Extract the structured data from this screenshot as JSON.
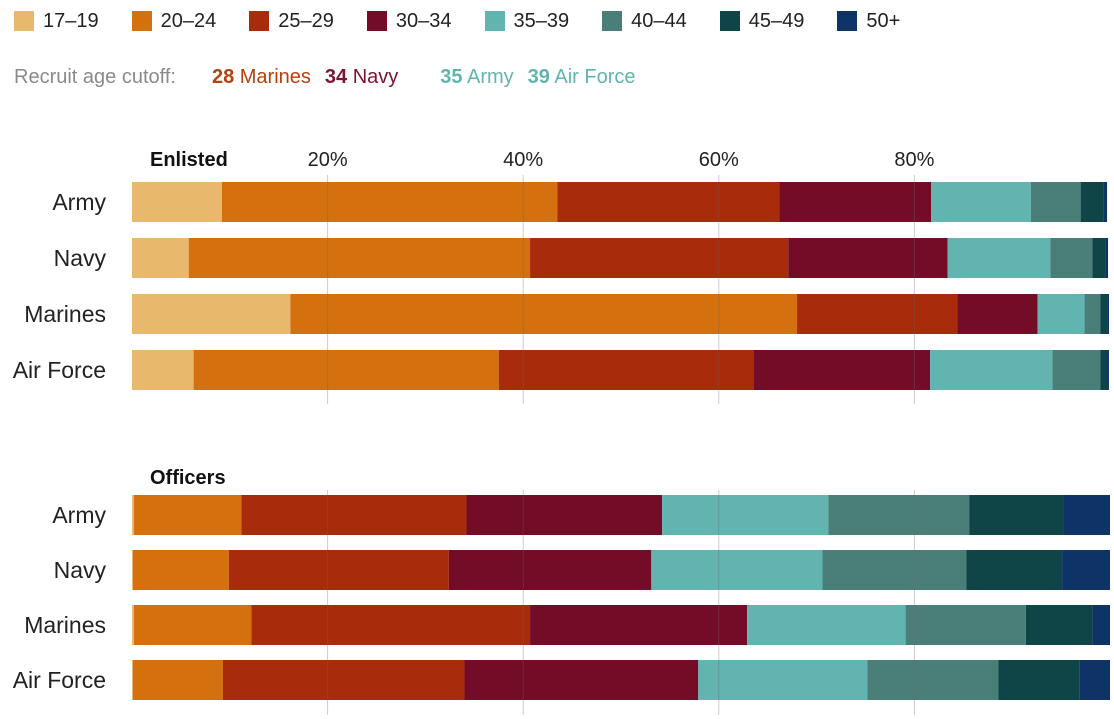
{
  "legend": [
    {
      "label": "17–19",
      "color": "#e8b96c"
    },
    {
      "label": "20–24",
      "color": "#d4700d"
    },
    {
      "label": "25–29",
      "color": "#a82c0c"
    },
    {
      "label": "30–34",
      "color": "#730d27"
    },
    {
      "label": "35–39",
      "color": "#62b4b1"
    },
    {
      "label": "40–44",
      "color": "#4a7f79"
    },
    {
      "label": "45–49",
      "color": "#0f4546"
    },
    {
      "label": "50+",
      "color": "#0d3367"
    }
  ],
  "cutoff": {
    "label": "Recruit age cutoff:",
    "items": [
      {
        "age": "28",
        "branch": "Marines",
        "color": "#b7410e"
      },
      {
        "age": "34",
        "branch": "Navy",
        "color": "#7a1430"
      },
      {
        "age": "35",
        "branch": "Army",
        "color": "#62b4b1"
      },
      {
        "age": "39",
        "branch": "Air Force",
        "color": "#62b4b1"
      }
    ]
  },
  "chart_data": [
    {
      "type": "bar",
      "stacked": true,
      "orientation": "horizontal",
      "title": "Enlisted",
      "xlim": [
        0,
        100
      ],
      "xticks": [
        "20%",
        "40%",
        "60%",
        "80%"
      ],
      "xtick_values": [
        20,
        40,
        60,
        80
      ],
      "grid": true,
      "categories": [
        "Army",
        "Navy",
        "Marines",
        "Air Force"
      ],
      "series": [
        {
          "name": "17–19",
          "values": [
            9.2,
            5.8,
            16.2,
            6.3
          ]
        },
        {
          "name": "20–24",
          "values": [
            34.3,
            34.9,
            51.8,
            31.2
          ]
        },
        {
          "name": "25–29",
          "values": [
            22.7,
            26.4,
            16.4,
            26.1
          ]
        },
        {
          "name": "30–34",
          "values": [
            15.5,
            16.3,
            8.2,
            18.0
          ]
        },
        {
          "name": "35–39",
          "values": [
            10.2,
            10.5,
            4.8,
            12.5
          ]
        },
        {
          "name": "40–44",
          "values": [
            5.1,
            4.3,
            1.6,
            4.9
          ]
        },
        {
          "name": "45–49",
          "values": [
            2.3,
            1.3,
            0.7,
            0.8
          ]
        },
        {
          "name": "50+",
          "values": [
            0.4,
            0.3,
            0.2,
            0.1
          ]
        }
      ]
    },
    {
      "type": "bar",
      "stacked": true,
      "orientation": "horizontal",
      "title": "Officers",
      "xlim": [
        0,
        100
      ],
      "grid": true,
      "categories": [
        "Army",
        "Navy",
        "Marines",
        "Air Force"
      ],
      "series": [
        {
          "name": "17–19",
          "values": [
            0.2,
            0.1,
            0.2,
            0.1
          ]
        },
        {
          "name": "20–24",
          "values": [
            11.0,
            9.8,
            12.0,
            9.2
          ]
        },
        {
          "name": "25–29",
          "values": [
            23.0,
            22.5,
            28.5,
            24.7
          ]
        },
        {
          "name": "30–34",
          "values": [
            20.0,
            20.7,
            22.2,
            23.9
          ]
        },
        {
          "name": "35–39",
          "values": [
            17.0,
            17.5,
            16.2,
            17.3
          ]
        },
        {
          "name": "40–44",
          "values": [
            14.4,
            14.7,
            12.3,
            13.4
          ]
        },
        {
          "name": "45–49",
          "values": [
            9.6,
            9.8,
            6.8,
            8.3
          ]
        },
        {
          "name": "50+",
          "values": [
            4.8,
            4.9,
            1.8,
            3.1
          ]
        }
      ]
    }
  ]
}
